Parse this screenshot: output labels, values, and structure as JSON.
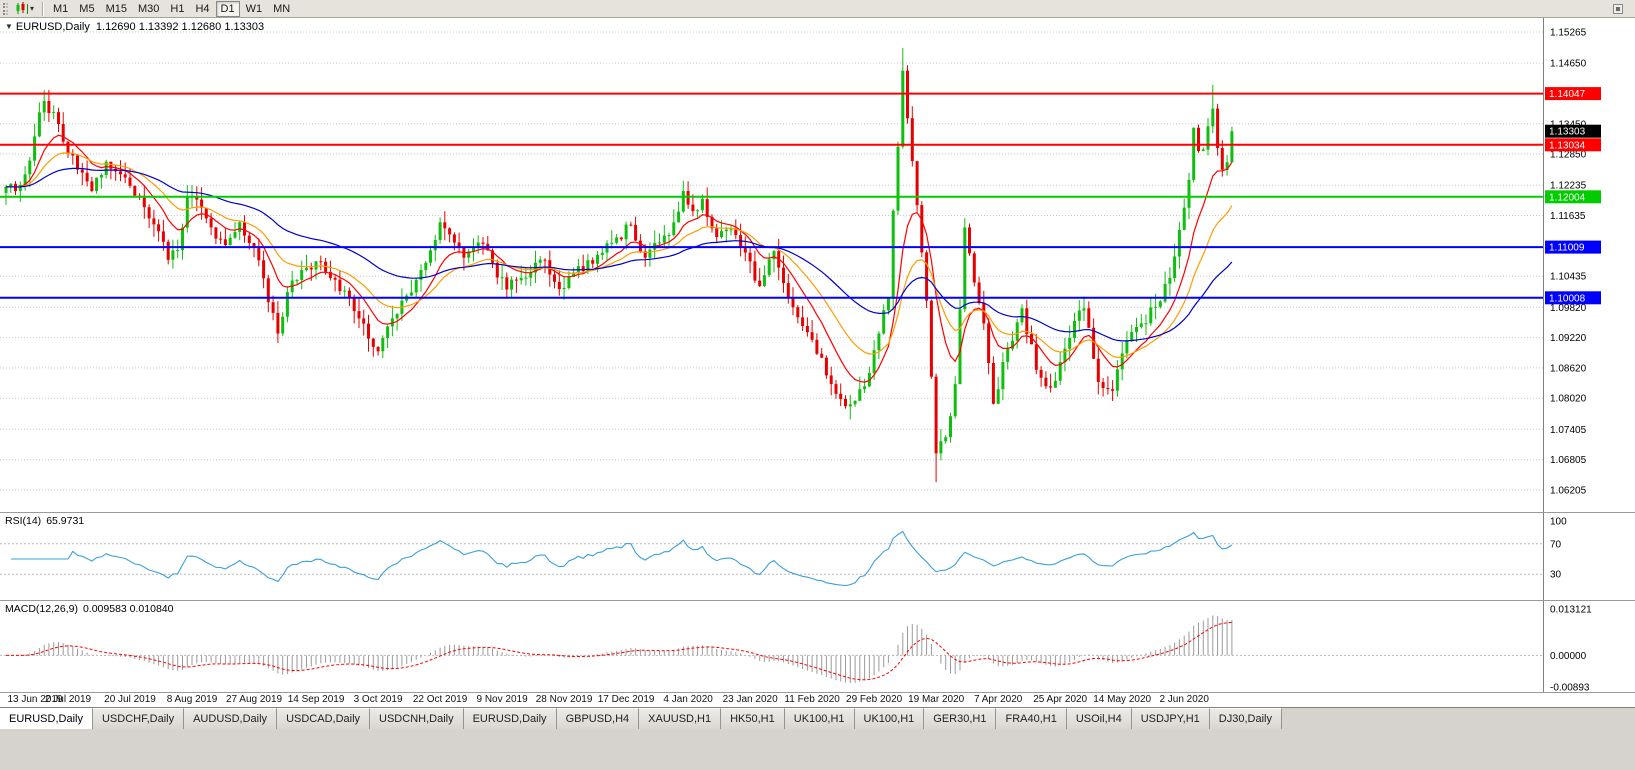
{
  "toolbar": {
    "timeframes": [
      "M1",
      "M5",
      "M15",
      "M30",
      "H1",
      "H4",
      "D1",
      "W1",
      "MN"
    ],
    "active": "D1"
  },
  "chart": {
    "collapse_arrow": "▼",
    "symbol_label": "EURUSD,Daily",
    "ohlc_text": "1.12690 1.13392 1.12680 1.13303"
  },
  "indicators": {
    "rsi": {
      "label": "RSI(14)",
      "value": "65.9731",
      "period": 14,
      "levels": [
        70,
        30
      ],
      "axis_labels": [
        {
          "v": 100,
          "t": "100"
        },
        {
          "v": 70,
          "t": "70"
        },
        {
          "v": 30,
          "t": "30"
        }
      ],
      "color": "#3aa0dc"
    },
    "macd": {
      "label": "MACD(12,26,9)",
      "values": "0.009583 0.010840",
      "fast": 12,
      "slow": 26,
      "signal": 9,
      "axis_max": 0.013121,
      "axis_min": -0.00893,
      "axis_labels": [
        {
          "v": 0.013121,
          "t": "0.013121"
        },
        {
          "v": 0,
          "t": "0.00000"
        },
        {
          "v": -0.00893,
          "t": "-0.00893"
        }
      ],
      "hist_color": "#9a9a9a",
      "signal_color": "#ff0000"
    }
  },
  "chart_data": {
    "type": "candlestick",
    "symbol": "EURUSD",
    "timeframe": "Daily",
    "ohlc_current": {
      "open": 1.1269,
      "high": 1.13392,
      "low": 1.1268,
      "close": 1.13303
    },
    "current_price_label": {
      "price": 1.13303,
      "label": "1.13303",
      "color": "#000000"
    },
    "y_axis": {
      "top": 1.15265,
      "bottom": 1.06205,
      "ticks": [
        1.15265,
        1.1465,
        1.1345,
        1.1285,
        1.12235,
        1.11635,
        1.10435,
        1.0982,
        1.0922,
        1.0862,
        1.0802,
        1.07405,
        1.06805,
        1.06205
      ]
    },
    "hlines": [
      {
        "price": 1.14047,
        "label": "1.14047",
        "color": "#ff0000",
        "kind": "resistance"
      },
      {
        "price": 1.13034,
        "label": "1.13034",
        "color": "#ff0000",
        "kind": "resistance"
      },
      {
        "price": 1.12004,
        "label": "1.12004",
        "color": "#00cc00",
        "kind": "support"
      },
      {
        "price": 1.11009,
        "label": "1.11009",
        "color": "#0000ff",
        "kind": "support"
      },
      {
        "price": 1.10008,
        "label": "1.10008",
        "color": "#0000ff",
        "kind": "support"
      }
    ],
    "x_labels": [
      {
        "idx": 0,
        "label": "13 Jun 2019"
      },
      {
        "idx": 13,
        "label": "2 Jul 2019"
      },
      {
        "idx": 26,
        "label": "20 Jul 2019"
      },
      {
        "idx": 39,
        "label": "8 Aug 2019"
      },
      {
        "idx": 52,
        "label": "27 Aug 2019"
      },
      {
        "idx": 65,
        "label": "14 Sep 2019"
      },
      {
        "idx": 78,
        "label": "3 Oct 2019"
      },
      {
        "idx": 91,
        "label": "22 Oct 2019"
      },
      {
        "idx": 104,
        "label": "9 Nov 2019"
      },
      {
        "idx": 117,
        "label": "28 Nov 2019"
      },
      {
        "idx": 130,
        "label": "17 Dec 2019"
      },
      {
        "idx": 143,
        "label": "4 Jan 2020"
      },
      {
        "idx": 156,
        "label": "23 Jan 2020"
      },
      {
        "idx": 169,
        "label": "11 Feb 2020"
      },
      {
        "idx": 182,
        "label": "29 Feb 2020"
      },
      {
        "idx": 195,
        "label": "19 Mar 2020"
      },
      {
        "idx": 208,
        "label": "7 Apr 2020"
      },
      {
        "idx": 221,
        "label": "25 Apr 2020"
      },
      {
        "idx": 234,
        "label": "14 May 2020"
      },
      {
        "idx": 247,
        "label": "2 Jun 2020"
      }
    ],
    "moving_averages": [
      {
        "period": 10,
        "color": "#ff0000",
        "type": "ema"
      },
      {
        "period": 21,
        "color": "#ff9d00",
        "type": "ema"
      },
      {
        "period": 50,
        "color": "#0000cc",
        "type": "ema"
      }
    ],
    "price_path": [
      [
        0,
        1.122
      ],
      [
        2,
        1.1212
      ],
      [
        4,
        1.1245
      ],
      [
        6,
        1.132
      ],
      [
        8,
        1.139
      ],
      [
        10,
        1.1368
      ],
      [
        13,
        1.1286
      ],
      [
        16,
        1.1248
      ],
      [
        18,
        1.1212
      ],
      [
        21,
        1.127
      ],
      [
        24,
        1.1245
      ],
      [
        26,
        1.1222
      ],
      [
        29,
        1.118
      ],
      [
        31,
        1.1146
      ],
      [
        34,
        1.1076
      ],
      [
        36,
        1.1095
      ],
      [
        38,
        1.12
      ],
      [
        40,
        1.1195
      ],
      [
        43,
        1.114
      ],
      [
        46,
        1.1105
      ],
      [
        49,
        1.115
      ],
      [
        52,
        1.11
      ],
      [
        55,
        1.0992
      ],
      [
        57,
        1.093
      ],
      [
        60,
        1.1035
      ],
      [
        63,
        1.106
      ],
      [
        65,
        1.1073
      ],
      [
        68,
        1.104
      ],
      [
        71,
        1.1015
      ],
      [
        74,
        1.096
      ],
      [
        76,
        1.092
      ],
      [
        78,
        1.0895
      ],
      [
        81,
        1.096
      ],
      [
        84,
        1.1005
      ],
      [
        88,
        1.107
      ],
      [
        91,
        1.115
      ],
      [
        94,
        1.111
      ],
      [
        96,
        1.108
      ],
      [
        99,
        1.111
      ],
      [
        102,
        1.107
      ],
      [
        105,
        1.1017
      ],
      [
        108,
        1.104
      ],
      [
        111,
        1.107
      ],
      [
        113,
        1.1075
      ],
      [
        116,
        1.1018
      ],
      [
        119,
        1.105
      ],
      [
        122,
        1.1075
      ],
      [
        125,
        1.109
      ],
      [
        128,
        1.112
      ],
      [
        131,
        1.1145
      ],
      [
        134,
        1.108
      ],
      [
        137,
        1.111
      ],
      [
        140,
        1.115
      ],
      [
        142,
        1.1212
      ],
      [
        144,
        1.1172
      ],
      [
        146,
        1.1196
      ],
      [
        149,
        1.1121
      ],
      [
        152,
        1.1136
      ],
      [
        155,
        1.109
      ],
      [
        158,
        1.1024
      ],
      [
        161,
        1.1093
      ],
      [
        164,
        1.1
      ],
      [
        167,
        1.0945
      ],
      [
        170,
        1.089
      ],
      [
        173,
        1.083
      ],
      [
        176,
        1.0786
      ],
      [
        179,
        1.082
      ],
      [
        181,
        1.0852
      ],
      [
        183,
        1.093
      ],
      [
        185,
        1.1
      ],
      [
        186,
        1.1173
      ],
      [
        188,
        1.145
      ],
      [
        190,
        1.1271
      ],
      [
        191,
        1.1184
      ],
      [
        193,
        1.0995
      ],
      [
        195,
        1.0693
      ],
      [
        197,
        1.0725
      ],
      [
        199,
        1.083
      ],
      [
        201,
        1.114
      ],
      [
        203,
        1.1031
      ],
      [
        205,
        1.095
      ],
      [
        207,
        1.0791
      ],
      [
        210,
        1.09
      ],
      [
        213,
        1.098
      ],
      [
        216,
        1.0858
      ],
      [
        219,
        1.0823
      ],
      [
        222,
        1.09
      ],
      [
        224,
        1.0955
      ],
      [
        226,
        1.098
      ],
      [
        229,
        1.0834
      ],
      [
        232,
        1.0817
      ],
      [
        235,
        1.0915
      ],
      [
        238,
        1.095
      ],
      [
        241,
        1.0983
      ],
      [
        244,
        1.104
      ],
      [
        246,
        1.1135
      ],
      [
        248,
        1.1234
      ],
      [
        249,
        1.1337
      ],
      [
        250,
        1.1291
      ],
      [
        251,
        1.1294
      ],
      [
        252,
        1.134
      ],
      [
        253,
        1.1375
      ],
      [
        254,
        1.1297
      ],
      [
        255,
        1.1254
      ],
      [
        256,
        1.1269
      ],
      [
        257,
        1.13303
      ]
    ],
    "spikes": [
      {
        "i": 9,
        "h": 1.1412
      },
      {
        "i": 188,
        "h": 1.1495
      },
      {
        "i": 195,
        "l": 1.0636
      },
      {
        "i": 253,
        "h": 1.1422
      }
    ],
    "noise_seed": 20200616,
    "noise_amp": 0.0013,
    "wick_amp": 0.0026,
    "colors": {
      "up": "#0fbf0f",
      "down": "#e80000",
      "grid": "#c9c9c9"
    }
  },
  "tabs": {
    "items": [
      {
        "label": "EURUSD,Daily",
        "active": true
      },
      {
        "label": "USDCHF,Daily",
        "active": false
      },
      {
        "label": "AUDUSD,Daily",
        "active": false
      },
      {
        "label": "USDCAD,Daily",
        "active": false
      },
      {
        "label": "USDCNH,Daily",
        "active": false
      },
      {
        "label": "EURUSD,Daily",
        "active": false
      },
      {
        "label": "GBPUSD,H4",
        "active": false
      },
      {
        "label": "XAUUSD,H1",
        "active": false
      },
      {
        "label": "HK50,H1",
        "active": false
      },
      {
        "label": "UK100,H1",
        "active": false
      },
      {
        "label": "UK100,H1",
        "active": false
      },
      {
        "label": "GER30,H1",
        "active": false
      },
      {
        "label": "FRA40,H1",
        "active": false
      },
      {
        "label": "USOil,H4",
        "active": false
      },
      {
        "label": "USDJPY,H1",
        "active": false
      },
      {
        "label": "DJ30,Daily",
        "active": false
      }
    ]
  }
}
